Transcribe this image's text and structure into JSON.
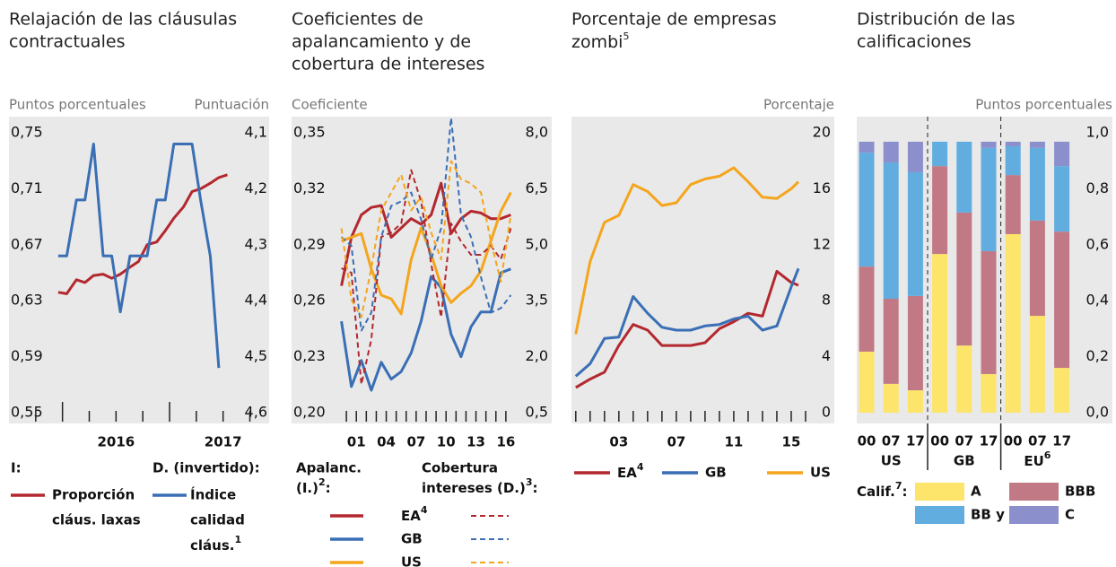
{
  "chart_data": [
    {
      "type": "line",
      "title": [
        "Relajación de las cláusulas",
        "contractuales"
      ],
      "ylabel": "Puntos porcentuales",
      "y2label": "Puntuación",
      "ylim": [
        0.55,
        0.75
      ],
      "yticks": [
        {
          "value": 0.55,
          "label": "0,55"
        },
        {
          "value": 0.59,
          "label": "0,59"
        },
        {
          "value": 0.63,
          "label": "0,63"
        },
        {
          "value": 0.67,
          "label": "0,67"
        },
        {
          "value": 0.71,
          "label": "0,71"
        },
        {
          "value": 0.75,
          "label": "0,75"
        }
      ],
      "y2lim": [
        4.1,
        4.6
      ],
      "y2_inverted": true,
      "y2ticks": [
        {
          "value": 4.1,
          "label": "4,1"
        },
        {
          "value": 4.2,
          "label": "4,2"
        },
        {
          "value": 4.3,
          "label": "4,3"
        },
        {
          "value": 4.4,
          "label": "4,4"
        },
        {
          "value": 4.5,
          "label": "4,5"
        },
        {
          "value": 4.6,
          "label": "4,6"
        }
      ],
      "xlim": [
        2015.5,
        2017.93
      ],
      "xticks": [
        2015.75,
        2016,
        2016.25,
        2016.5,
        2016.75,
        2017,
        2017.25,
        2017.5,
        2017.75
      ],
      "xlabels": [
        {
          "value": 2016.5,
          "label": "2016"
        },
        {
          "value": 2017.5,
          "label": "2017"
        }
      ],
      "legend_headers": [
        "I:",
        "D. (invertido):"
      ],
      "series": [
        {
          "name": [
            "Proporción",
            "cláus. laxas"
          ],
          "color": "#b3282e",
          "axis": "y",
          "x": [
            2015.96,
            2016.04,
            2016.13,
            2016.21,
            2016.29,
            2016.38,
            2016.46,
            2016.54,
            2016.63,
            2016.71,
            2016.79,
            2016.88,
            2016.96,
            2017.04,
            2017.13,
            2017.21,
            2017.29,
            2017.38,
            2017.46,
            2017.54
          ],
          "values": [
            0.636,
            0.635,
            0.645,
            0.643,
            0.648,
            0.649,
            0.646,
            0.649,
            0.654,
            0.658,
            0.67,
            0.672,
            0.68,
            0.689,
            0.697,
            0.708,
            0.71,
            0.714,
            0.718,
            0.72
          ]
        },
        {
          "name": [
            "Índice",
            "calidad",
            "cláus."
          ],
          "note": "1",
          "color": "#3a6fb5",
          "axis": "y2",
          "x": [
            2015.96,
            2016.04,
            2016.13,
            2016.21,
            2016.29,
            2016.38,
            2016.46,
            2016.54,
            2016.63,
            2016.71,
            2016.79,
            2016.88,
            2016.96,
            2017.04,
            2017.13,
            2017.21,
            2017.29,
            2017.38,
            2017.46
          ],
          "values": [
            4.32,
            4.32,
            4.22,
            4.22,
            4.12,
            4.32,
            4.32,
            4.42,
            4.32,
            4.32,
            4.32,
            4.22,
            4.22,
            4.12,
            4.12,
            4.12,
            4.22,
            4.32,
            4.52
          ]
        }
      ]
    },
    {
      "type": "line",
      "title": [
        "Coeficientes de",
        "apalancamiento y de",
        "cobertura de intereses"
      ],
      "ylabel": "Coeficiente",
      "ylim": [
        0.2,
        0.35
      ],
      "yticks": [
        {
          "value": 0.2,
          "label": "0,20"
        },
        {
          "value": 0.23,
          "label": "0,23"
        },
        {
          "value": 0.26,
          "label": "0,26"
        },
        {
          "value": 0.29,
          "label": "0,29"
        },
        {
          "value": 0.32,
          "label": "0,32"
        },
        {
          "value": 0.35,
          "label": "0,35"
        }
      ],
      "y2lim": [
        0.5,
        8
      ],
      "y2ticks": [
        {
          "value": 0.5,
          "label": "0,5"
        },
        {
          "value": 2,
          "label": "2,0"
        },
        {
          "value": 3.5,
          "label": "3,5"
        },
        {
          "value": 5,
          "label": "5,0"
        },
        {
          "value": 6.5,
          "label": "6,5"
        },
        {
          "value": 8,
          "label": "8,0"
        }
      ],
      "xlim": [
        1994.5,
        2020.6
      ],
      "xticks": [
        2000,
        2001,
        2002,
        2003,
        2004,
        2005,
        2006,
        2007,
        2008,
        2009,
        2010,
        2011,
        2012,
        2013,
        2014,
        2015,
        2016
      ],
      "xlabels": [
        {
          "value": 2001,
          "label": "01"
        },
        {
          "value": 2004,
          "label": "04"
        },
        {
          "value": 2007,
          "label": "07"
        },
        {
          "value": 2010,
          "label": "10"
        },
        {
          "value": 2013,
          "label": "13"
        },
        {
          "value": 2016,
          "label": "16"
        }
      ],
      "x": [
        1999.5,
        2000.5,
        2001.5,
        2002.5,
        2003.5,
        2004.5,
        2005.5,
        2006.5,
        2007.5,
        2008.5,
        2009.5,
        2010.5,
        2011.5,
        2012.5,
        2013.5,
        2014.5,
        2015.5,
        2016.5
      ],
      "legend_headers": [
        {
          "lines": [
            "Apalanc.",
            "(I.)"
          ],
          "note": "2",
          "suffix": ":"
        },
        {
          "lines": [
            "Cobertura",
            "intereses (D.)"
          ],
          "note": "3",
          "suffix": ":"
        }
      ],
      "legend_entries": [
        {
          "name": "EA",
          "note": "4"
        },
        {
          "name": "GB"
        },
        {
          "name": "US"
        }
      ],
      "series": [
        {
          "legend": 0,
          "style": "solid",
          "color": "#b3282e",
          "axis": "y",
          "values": [
            0.268,
            0.294,
            0.306,
            0.31,
            0.311,
            0.294,
            0.299,
            0.304,
            0.301,
            0.306,
            0.323,
            0.296,
            0.304,
            0.308,
            0.307,
            0.304,
            0.304,
            0.306
          ]
        },
        {
          "legend": 1,
          "style": "solid",
          "color": "#3a6fb5",
          "axis": "y",
          "values": [
            0.249,
            0.214,
            0.228,
            0.212,
            0.227,
            0.218,
            0.222,
            0.232,
            0.249,
            0.273,
            0.267,
            0.242,
            0.23,
            0.246,
            0.254,
            0.254,
            0.275,
            0.277
          ]
        },
        {
          "legend": 2,
          "style": "solid",
          "color": "#f4a51c",
          "axis": "y",
          "values": [
            0.292,
            0.294,
            0.296,
            0.277,
            0.263,
            0.261,
            0.253,
            0.282,
            0.299,
            0.285,
            0.268,
            0.259,
            0.264,
            0.268,
            0.276,
            0.292,
            0.308,
            0.318
          ]
        },
        {
          "legend": 0,
          "style": "dashed",
          "color": "#b3282e",
          "axis": "y2",
          "values": [
            4.37,
            4.25,
            1.26,
            2.46,
            5.21,
            5.33,
            5.57,
            7.0,
            6.16,
            4.49,
            3.06,
            5.57,
            5.09,
            4.73,
            4.73,
            4.97,
            4.61,
            5.44
          ]
        },
        {
          "legend": 1,
          "style": "dashed",
          "color": "#3a6fb5",
          "axis": "y2",
          "values": [
            5.21,
            4.97,
            2.7,
            3.18,
            5.21,
            6.04,
            6.16,
            6.4,
            5.68,
            4.61,
            5.44,
            8.4,
            5.8,
            5.21,
            4.13,
            3.18,
            3.3,
            3.65
          ]
        },
        {
          "legend": 2,
          "style": "dashed",
          "color": "#f4a51c",
          "axis": "y2",
          "values": [
            5.44,
            3.53,
            3.06,
            4.37,
            5.92,
            6.4,
            6.88,
            5.92,
            6.28,
            5.33,
            4.61,
            7.24,
            6.76,
            6.64,
            6.4,
            5.09,
            4.01,
            5.8
          ]
        }
      ]
    },
    {
      "type": "line",
      "title": [
        "Porcentaje de empresas",
        "zombi"
      ],
      "title_note": "5",
      "ylabel": "Porcentaje",
      "yaxis_side": "right",
      "ylim": [
        0,
        20
      ],
      "yticks": [
        0,
        4,
        8,
        12,
        16,
        20
      ],
      "xlim": [
        1999.7,
        2018
      ],
      "xticks": [
        2000,
        2001,
        2002,
        2003,
        2004,
        2005,
        2006,
        2007,
        2008,
        2009,
        2010,
        2011,
        2012,
        2013,
        2014,
        2015,
        2016
      ],
      "xlabels": [
        {
          "value": 2003,
          "label": "03"
        },
        {
          "value": 2007,
          "label": "07"
        },
        {
          "value": 2011,
          "label": "11"
        },
        {
          "value": 2015,
          "label": "15"
        }
      ],
      "x": [
        2000,
        2001,
        2002,
        2003,
        2004,
        2005,
        2006,
        2007,
        2008,
        2009,
        2010,
        2011,
        2012,
        2013,
        2014,
        2015,
        2015.5
      ],
      "series": [
        {
          "name": "EA",
          "note": "4",
          "color": "#b3282e",
          "axis": "y",
          "values": [
            1.8,
            2.4,
            2.9,
            4.8,
            6.3,
            5.9,
            4.8,
            4.8,
            4.8,
            5.0,
            6.0,
            6.5,
            7.1,
            6.9,
            10.1,
            9.3,
            9.1
          ]
        },
        {
          "name": "GB",
          "color": "#3a6fb5",
          "axis": "y",
          "values": [
            2.6,
            3.5,
            5.3,
            5.4,
            8.3,
            7.1,
            6.1,
            5.9,
            5.9,
            6.2,
            6.3,
            6.7,
            6.9,
            5.9,
            6.2,
            9.0,
            10.3
          ]
        },
        {
          "name": "US",
          "color": "#f4a51c",
          "axis": "y",
          "values": [
            5.6,
            10.8,
            13.6,
            14.1,
            16.3,
            15.8,
            14.8,
            15.0,
            16.3,
            16.7,
            16.9,
            17.5,
            16.5,
            15.4,
            15.3,
            16.0,
            16.5
          ]
        }
      ]
    },
    {
      "type": "stacked_bar",
      "title": [
        "Distribución de las",
        "calificaciones"
      ],
      "ylabel": "Puntos porcentuales",
      "yaxis_side": "right",
      "ylim": [
        0,
        1
      ],
      "yticks": [
        {
          "value": 0,
          "label": "0,0"
        },
        {
          "value": 0.2,
          "label": "0,2"
        },
        {
          "value": 0.4,
          "label": "0,4"
        },
        {
          "value": 0.6,
          "label": "0,6"
        },
        {
          "value": 0.8,
          "label": "0,8"
        },
        {
          "value": 1,
          "label": "1,0"
        }
      ],
      "categories": [
        "00",
        "07",
        "17",
        "00",
        "07",
        "17",
        "00",
        "07",
        "17"
      ],
      "groups": [
        {
          "label": "US"
        },
        {
          "label": "GB"
        },
        {
          "label": "EU",
          "note": "6"
        }
      ],
      "legend_label": "Calif.",
      "legend_note": "7",
      "legend_suffix": ":",
      "series": [
        {
          "name": "A",
          "color": "#fce56a",
          "values": [
            0.218,
            0.103,
            0.08,
            0.567,
            0.24,
            0.138,
            0.638,
            0.346,
            0.16
          ]
        },
        {
          "name": "BBB",
          "color": "#c17a85",
          "values": [
            0.304,
            0.304,
            0.337,
            0.314,
            0.475,
            0.439,
            0.211,
            0.34,
            0.487
          ]
        },
        {
          "name": "BB y B",
          "color": "#62ade0",
          "values": [
            0.407,
            0.487,
            0.442,
            0.087,
            0.253,
            0.369,
            0.103,
            0.26,
            0.234
          ]
        },
        {
          "name": "C",
          "color": "#8b8fcc",
          "values": [
            0.039,
            0.074,
            0.109,
            0,
            0,
            0.022,
            0.016,
            0.022,
            0.087
          ]
        }
      ]
    }
  ]
}
